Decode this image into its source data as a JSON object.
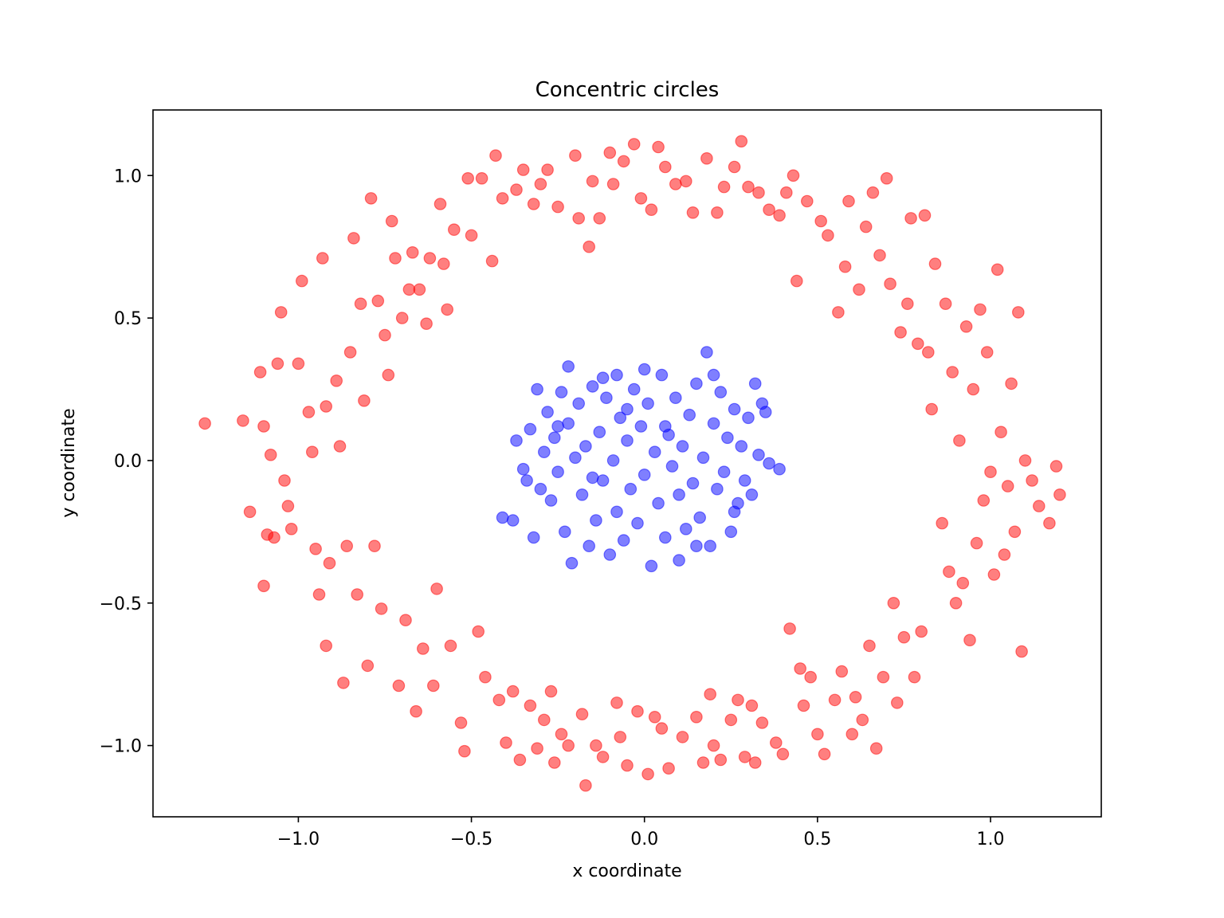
{
  "chart_data": {
    "type": "scatter",
    "title": "Concentric circles",
    "xlabel": "x coordinate",
    "ylabel": "y coordinate",
    "xlim": [
      -1.42,
      1.32
    ],
    "ylim": [
      -1.25,
      1.23
    ],
    "xticks": [
      -1.0,
      -0.5,
      0.0,
      0.5,
      1.0
    ],
    "xtick_labels": [
      "−1.0",
      "−0.5",
      "0.0",
      "0.5",
      "1.0"
    ],
    "yticks": [
      -1.0,
      -0.5,
      0.0,
      0.5,
      1.0
    ],
    "ytick_labels": [
      "−1.0",
      "−0.5",
      "0.0",
      "0.5",
      "1.0"
    ],
    "grid": false,
    "legend": "none",
    "series": [
      {
        "color": "#ff0000",
        "alpha": 0.5,
        "points": [
          [
            -1.27,
            0.13
          ],
          [
            -1.16,
            0.14
          ],
          [
            -1.14,
            -0.18
          ],
          [
            -1.11,
            0.31
          ],
          [
            -1.1,
            0.12
          ],
          [
            -1.1,
            -0.44
          ],
          [
            -1.09,
            -0.26
          ],
          [
            -1.08,
            0.02
          ],
          [
            -1.07,
            -0.27
          ],
          [
            -1.06,
            0.34
          ],
          [
            -1.05,
            0.52
          ],
          [
            -1.04,
            -0.07
          ],
          [
            -1.03,
            -0.16
          ],
          [
            -1.02,
            -0.24
          ],
          [
            -1.0,
            0.34
          ],
          [
            -0.99,
            0.63
          ],
          [
            -0.97,
            0.17
          ],
          [
            -0.96,
            0.03
          ],
          [
            -0.95,
            -0.31
          ],
          [
            -0.94,
            -0.47
          ],
          [
            -0.93,
            0.71
          ],
          [
            -0.92,
            0.19
          ],
          [
            -0.92,
            -0.65
          ],
          [
            -0.91,
            -0.36
          ],
          [
            -0.89,
            0.28
          ],
          [
            -0.88,
            0.05
          ],
          [
            -0.87,
            -0.78
          ],
          [
            -0.86,
            -0.3
          ],
          [
            -0.85,
            0.38
          ],
          [
            -0.84,
            0.78
          ],
          [
            -0.83,
            -0.47
          ],
          [
            -0.82,
            0.55
          ],
          [
            -0.81,
            0.21
          ],
          [
            -0.8,
            -0.72
          ],
          [
            -0.79,
            0.92
          ],
          [
            -0.78,
            -0.3
          ],
          [
            -0.77,
            0.56
          ],
          [
            -0.76,
            -0.52
          ],
          [
            -0.75,
            0.44
          ],
          [
            -0.74,
            0.3
          ],
          [
            -0.73,
            0.84
          ],
          [
            -0.72,
            0.71
          ],
          [
            -0.71,
            -0.79
          ],
          [
            -0.7,
            0.5
          ],
          [
            -0.69,
            -0.56
          ],
          [
            -0.68,
            0.6
          ],
          [
            -0.67,
            0.73
          ],
          [
            -0.66,
            -0.88
          ],
          [
            -0.65,
            0.6
          ],
          [
            -0.64,
            -0.66
          ],
          [
            -0.63,
            0.48
          ],
          [
            -0.62,
            0.71
          ],
          [
            -0.61,
            -0.79
          ],
          [
            -0.6,
            -0.45
          ],
          [
            -0.59,
            0.9
          ],
          [
            -0.58,
            0.69
          ],
          [
            -0.57,
            0.53
          ],
          [
            -0.56,
            -0.65
          ],
          [
            -0.55,
            0.81
          ],
          [
            -0.53,
            -0.92
          ],
          [
            -0.52,
            -1.02
          ],
          [
            -0.51,
            0.99
          ],
          [
            -0.5,
            0.79
          ],
          [
            -0.48,
            -0.6
          ],
          [
            -0.47,
            0.99
          ],
          [
            -0.46,
            -0.76
          ],
          [
            -0.44,
            0.7
          ],
          [
            -0.43,
            1.07
          ],
          [
            -0.42,
            -0.84
          ],
          [
            -0.41,
            0.92
          ],
          [
            -0.4,
            -0.99
          ],
          [
            -0.38,
            -0.81
          ],
          [
            -0.37,
            0.95
          ],
          [
            -0.36,
            -1.05
          ],
          [
            -0.35,
            1.02
          ],
          [
            -0.33,
            -0.86
          ],
          [
            -0.32,
            0.9
          ],
          [
            -0.31,
            -1.01
          ],
          [
            -0.3,
            0.97
          ],
          [
            -0.29,
            -0.91
          ],
          [
            -0.28,
            1.02
          ],
          [
            -0.27,
            -0.81
          ],
          [
            -0.26,
            -1.06
          ],
          [
            -0.25,
            0.89
          ],
          [
            -0.24,
            -0.96
          ],
          [
            -0.22,
            -1.0
          ],
          [
            -0.2,
            1.07
          ],
          [
            -0.19,
            0.85
          ],
          [
            -0.18,
            -0.89
          ],
          [
            -0.17,
            -1.14
          ],
          [
            -0.16,
            0.75
          ],
          [
            -0.15,
            0.98
          ],
          [
            -0.14,
            -1.0
          ],
          [
            -0.13,
            0.85
          ],
          [
            -0.12,
            -1.04
          ],
          [
            -0.1,
            1.08
          ],
          [
            -0.09,
            0.97
          ],
          [
            -0.08,
            -0.85
          ],
          [
            -0.07,
            -0.97
          ],
          [
            -0.06,
            1.05
          ],
          [
            -0.05,
            -1.07
          ],
          [
            -0.03,
            1.11
          ],
          [
            -0.02,
            -0.88
          ],
          [
            -0.01,
            0.92
          ],
          [
            0.01,
            -1.1
          ],
          [
            0.02,
            0.88
          ],
          [
            0.03,
            -0.9
          ],
          [
            0.04,
            1.1
          ],
          [
            0.05,
            -0.94
          ],
          [
            0.06,
            1.03
          ],
          [
            0.07,
            -1.08
          ],
          [
            0.09,
            0.97
          ],
          [
            0.11,
            -0.97
          ],
          [
            0.12,
            0.98
          ],
          [
            0.14,
            0.87
          ],
          [
            0.15,
            -0.9
          ],
          [
            0.17,
            -1.06
          ],
          [
            0.18,
            1.06
          ],
          [
            0.19,
            -0.82
          ],
          [
            0.2,
            -1.0
          ],
          [
            0.21,
            0.87
          ],
          [
            0.22,
            -1.05
          ],
          [
            0.23,
            0.96
          ],
          [
            0.25,
            -0.91
          ],
          [
            0.26,
            1.03
          ],
          [
            0.27,
            -0.84
          ],
          [
            0.28,
            1.12
          ],
          [
            0.29,
            -1.04
          ],
          [
            0.3,
            0.96
          ],
          [
            0.31,
            -0.86
          ],
          [
            0.32,
            -1.06
          ],
          [
            0.33,
            0.94
          ],
          [
            0.34,
            -0.92
          ],
          [
            0.36,
            0.88
          ],
          [
            0.38,
            -0.99
          ],
          [
            0.39,
            0.86
          ],
          [
            0.4,
            -1.03
          ],
          [
            0.41,
            0.94
          ],
          [
            0.42,
            -0.59
          ],
          [
            0.43,
            1.0
          ],
          [
            0.44,
            0.63
          ],
          [
            0.45,
            -0.73
          ],
          [
            0.46,
            -0.86
          ],
          [
            0.47,
            0.91
          ],
          [
            0.48,
            -0.76
          ],
          [
            0.5,
            -0.96
          ],
          [
            0.51,
            0.84
          ],
          [
            0.52,
            -1.03
          ],
          [
            0.53,
            0.79
          ],
          [
            0.55,
            -0.84
          ],
          [
            0.56,
            0.52
          ],
          [
            0.57,
            -0.74
          ],
          [
            0.58,
            0.68
          ],
          [
            0.59,
            0.91
          ],
          [
            0.6,
            -0.96
          ],
          [
            0.61,
            -0.83
          ],
          [
            0.62,
            0.6
          ],
          [
            0.63,
            -0.91
          ],
          [
            0.64,
            0.82
          ],
          [
            0.65,
            -0.65
          ],
          [
            0.66,
            0.94
          ],
          [
            0.67,
            -1.01
          ],
          [
            0.68,
            0.72
          ],
          [
            0.69,
            -0.76
          ],
          [
            0.7,
            0.99
          ],
          [
            0.71,
            0.62
          ],
          [
            0.72,
            -0.5
          ],
          [
            0.73,
            -0.85
          ],
          [
            0.74,
            0.45
          ],
          [
            0.75,
            -0.62
          ],
          [
            0.76,
            0.55
          ],
          [
            0.77,
            0.85
          ],
          [
            0.78,
            -0.76
          ],
          [
            0.79,
            0.41
          ],
          [
            0.8,
            -0.6
          ],
          [
            0.81,
            0.86
          ],
          [
            0.82,
            0.38
          ],
          [
            0.83,
            0.18
          ],
          [
            0.84,
            0.69
          ],
          [
            0.86,
            -0.22
          ],
          [
            0.87,
            0.55
          ],
          [
            0.88,
            -0.39
          ],
          [
            0.89,
            0.31
          ],
          [
            0.9,
            -0.5
          ],
          [
            0.91,
            0.07
          ],
          [
            0.92,
            -0.43
          ],
          [
            0.93,
            0.47
          ],
          [
            0.94,
            -0.63
          ],
          [
            0.95,
            0.25
          ],
          [
            0.96,
            -0.29
          ],
          [
            0.97,
            0.53
          ],
          [
            0.98,
            -0.14
          ],
          [
            0.99,
            0.38
          ],
          [
            1.0,
            -0.04
          ],
          [
            1.01,
            -0.4
          ],
          [
            1.02,
            0.67
          ],
          [
            1.03,
            0.1
          ],
          [
            1.04,
            -0.33
          ],
          [
            1.05,
            -0.09
          ],
          [
            1.06,
            0.27
          ],
          [
            1.07,
            -0.25
          ],
          [
            1.08,
            0.52
          ],
          [
            1.09,
            -0.67
          ],
          [
            1.1,
            0.0
          ],
          [
            1.12,
            -0.07
          ],
          [
            1.14,
            -0.16
          ],
          [
            1.17,
            -0.22
          ],
          [
            1.2,
            -0.12
          ],
          [
            1.19,
            -0.02
          ]
        ]
      },
      {
        "color": "#0000ff",
        "alpha": 0.5,
        "points": [
          [
            -0.41,
            -0.2
          ],
          [
            -0.38,
            -0.21
          ],
          [
            -0.37,
            0.07
          ],
          [
            -0.35,
            -0.03
          ],
          [
            -0.34,
            -0.07
          ],
          [
            -0.33,
            0.11
          ],
          [
            -0.32,
            -0.27
          ],
          [
            -0.31,
            0.25
          ],
          [
            -0.3,
            -0.1
          ],
          [
            -0.29,
            0.03
          ],
          [
            -0.28,
            0.17
          ],
          [
            -0.27,
            -0.14
          ],
          [
            -0.26,
            0.08
          ],
          [
            -0.25,
            -0.04
          ],
          [
            -0.24,
            0.24
          ],
          [
            -0.23,
            -0.25
          ],
          [
            -0.22,
            0.13
          ],
          [
            -0.21,
            -0.36
          ],
          [
            -0.2,
            0.01
          ],
          [
            -0.19,
            0.2
          ],
          [
            -0.18,
            -0.12
          ],
          [
            -0.17,
            0.05
          ],
          [
            -0.16,
            -0.3
          ],
          [
            -0.15,
            0.26
          ],
          [
            -0.14,
            -0.21
          ],
          [
            -0.13,
            0.1
          ],
          [
            -0.12,
            -0.07
          ],
          [
            -0.11,
            0.22
          ],
          [
            -0.1,
            -0.33
          ],
          [
            -0.09,
            0.0
          ],
          [
            -0.08,
            -0.18
          ],
          [
            -0.07,
            0.15
          ],
          [
            -0.06,
            -0.28
          ],
          [
            -0.05,
            0.07
          ],
          [
            -0.04,
            -0.1
          ],
          [
            -0.03,
            0.25
          ],
          [
            -0.02,
            -0.22
          ],
          [
            -0.01,
            0.12
          ],
          [
            0.0,
            -0.05
          ],
          [
            0.01,
            0.2
          ],
          [
            0.02,
            -0.37
          ],
          [
            0.03,
            0.03
          ],
          [
            0.04,
            -0.15
          ],
          [
            0.05,
            0.3
          ],
          [
            0.06,
            -0.27
          ],
          [
            0.07,
            0.09
          ],
          [
            0.08,
            -0.02
          ],
          [
            0.09,
            0.22
          ],
          [
            0.1,
            -0.12
          ],
          [
            0.11,
            0.05
          ],
          [
            0.12,
            -0.24
          ],
          [
            0.13,
            0.16
          ],
          [
            0.14,
            -0.08
          ],
          [
            0.15,
            0.27
          ],
          [
            0.16,
            -0.2
          ],
          [
            0.17,
            0.01
          ],
          [
            0.18,
            0.38
          ],
          [
            0.19,
            -0.3
          ],
          [
            0.2,
            0.13
          ],
          [
            0.21,
            -0.1
          ],
          [
            0.22,
            0.24
          ],
          [
            0.23,
            -0.04
          ],
          [
            0.24,
            0.08
          ],
          [
            0.25,
            -0.25
          ],
          [
            0.26,
            0.18
          ],
          [
            0.27,
            -0.15
          ],
          [
            0.28,
            0.05
          ],
          [
            0.29,
            -0.07
          ],
          [
            0.3,
            0.15
          ],
          [
            0.31,
            -0.12
          ],
          [
            0.32,
            0.27
          ],
          [
            0.33,
            0.02
          ],
          [
            0.34,
            0.2
          ],
          [
            0.35,
            0.17
          ],
          [
            0.36,
            -0.01
          ],
          [
            0.39,
            -0.03
          ],
          [
            -0.22,
            0.33
          ],
          [
            -0.15,
            -0.06
          ],
          [
            -0.05,
            0.18
          ],
          [
            0.06,
            0.12
          ],
          [
            0.1,
            -0.35
          ],
          [
            0.2,
            0.3
          ],
          [
            -0.12,
            0.29
          ],
          [
            0.0,
            0.32
          ],
          [
            0.15,
            -0.3
          ],
          [
            -0.25,
            0.12
          ],
          [
            0.26,
            -0.18
          ],
          [
            -0.08,
            0.3
          ]
        ]
      }
    ]
  }
}
